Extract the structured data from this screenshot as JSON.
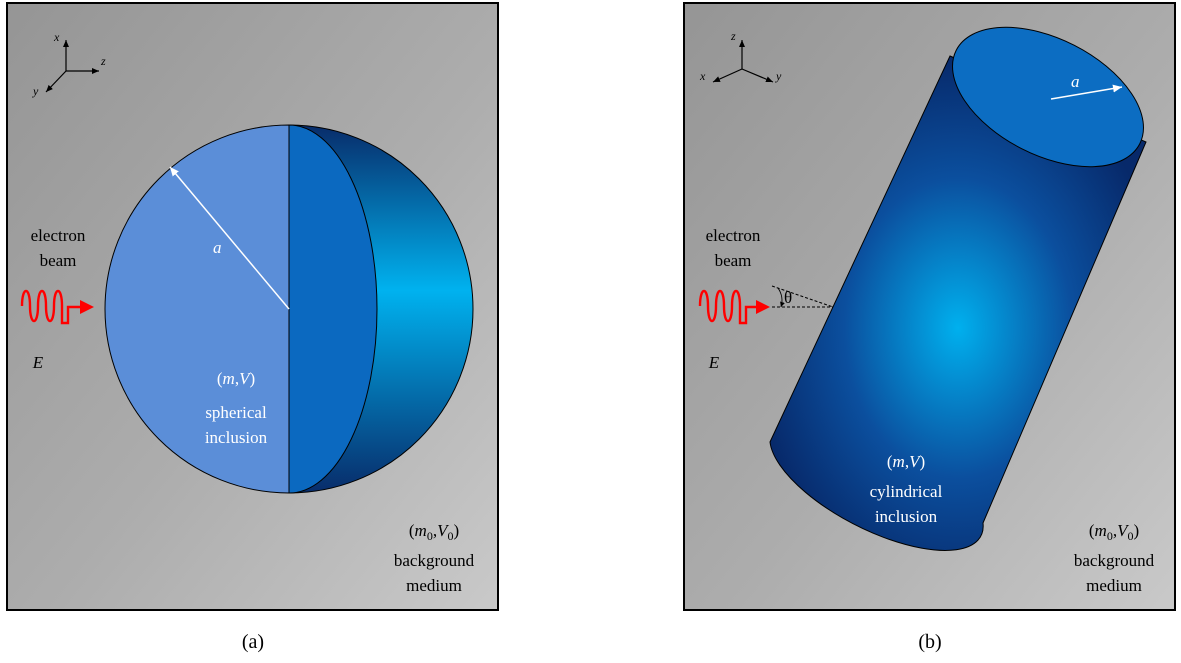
{
  "panel_a": {
    "axes": {
      "x": "x",
      "y": "y",
      "z": "z"
    },
    "source_label": {
      "line1": "electron",
      "line2": "beam",
      "field": "E"
    },
    "radius_label": "a",
    "inclusion": {
      "open": "(",
      "m": "m",
      "comma": ",",
      "V": "V",
      "close": ")",
      "line2": "spherical",
      "line3": "inclusion"
    },
    "background": {
      "open": "(",
      "m0": "m",
      "sub0a": "0",
      "comma": ",",
      "V0": "V",
      "sub0b": "0",
      "close": ")",
      "line2": "background",
      "line3": "medium"
    },
    "caption": "(a)"
  },
  "panel_b": {
    "axes": {
      "x": "x",
      "y": "y",
      "z": "z"
    },
    "source_label": {
      "line1": "electron",
      "line2": "beam",
      "field": "E"
    },
    "angle_label": "θ",
    "radius_label": "a",
    "inclusion": {
      "open": "(",
      "m": "m",
      "comma": ",",
      "V": "V",
      "close": ")",
      "line2": "cylindrical",
      "line3": "inclusion"
    },
    "background": {
      "open": "(",
      "m0": "m",
      "sub0a": "0",
      "comma": ",",
      "V0": "V",
      "sub0b": "0",
      "close": ")",
      "line2": "background",
      "line3": "medium"
    },
    "caption": "(b)"
  },
  "colors": {
    "panel_light": "#c4c4c4",
    "panel_dark": "#9a9a9a",
    "sphere_face": "#5b8fd8",
    "sphere_cut": "#0a6ac0",
    "sphere_shell_dark": "#072a66",
    "sphere_shell_light": "#00b0ee",
    "cylinder_dark": "#082d6e",
    "cylinder_light": "#00aeea",
    "cylinder_top": "#0c6dc2",
    "beam": "#ff0000"
  }
}
